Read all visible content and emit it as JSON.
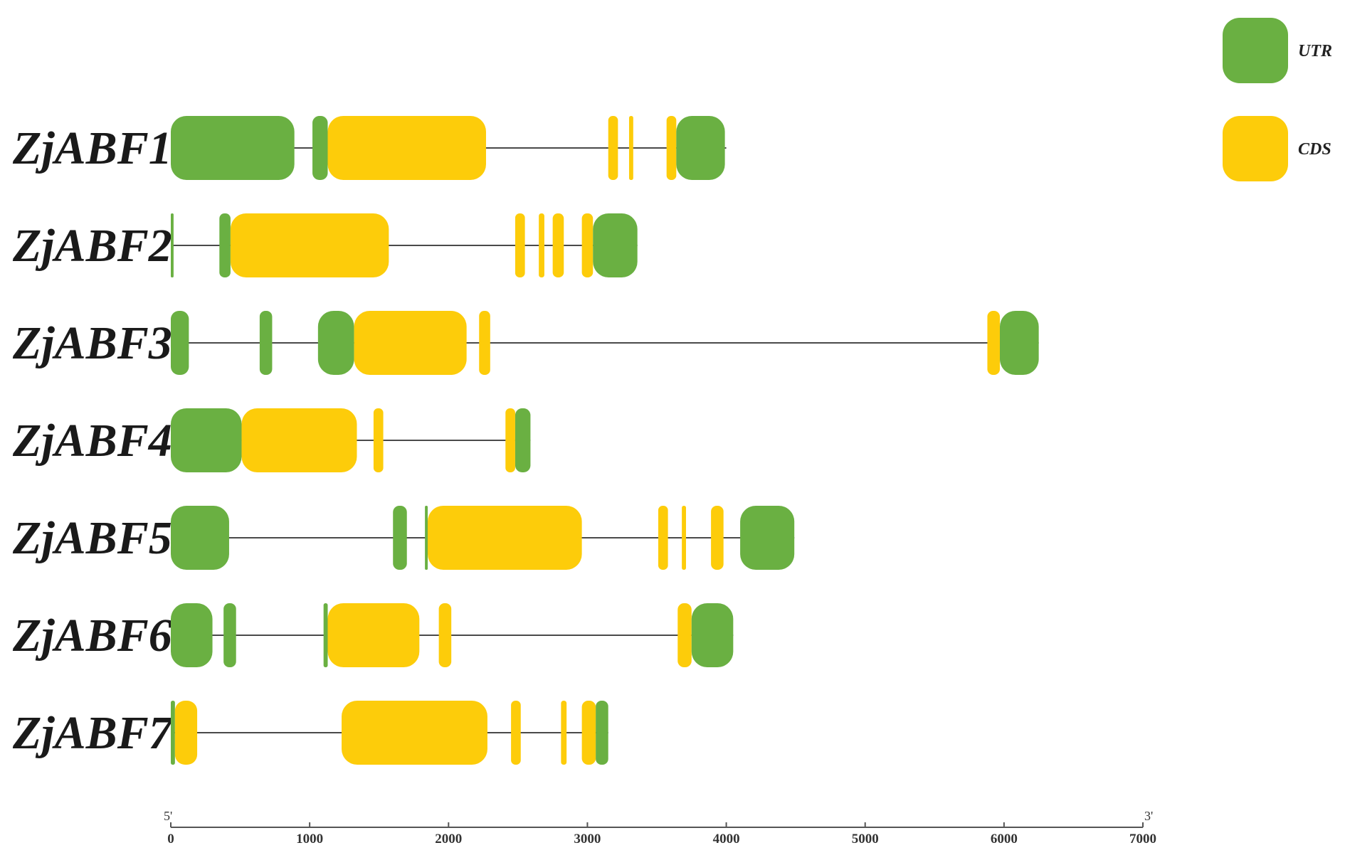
{
  "legend": [
    {
      "label": "UTR",
      "color": "#6ab042"
    },
    {
      "label": "CDS",
      "color": "#fdcc0a"
    }
  ],
  "axis": {
    "min": 0,
    "max": 7000,
    "ticks": [
      {
        "value": 0,
        "label": "0"
      },
      {
        "value": 1000,
        "label": "1000"
      },
      {
        "value": 2000,
        "label": "2000"
      },
      {
        "value": 3000,
        "label": "3000"
      },
      {
        "value": 4000,
        "label": "4000"
      },
      {
        "value": 5000,
        "label": "5000"
      },
      {
        "value": 6000,
        "label": "6000"
      },
      {
        "value": 7000,
        "label": "7000"
      }
    ],
    "start_label": "5'",
    "end_label": "3'"
  },
  "genes": [
    {
      "name": "ZjABF1",
      "length": 4000,
      "segments": [
        {
          "type": "UTR",
          "start": 0,
          "end": 890
        },
        {
          "type": "UTR",
          "start": 1020,
          "end": 1130
        },
        {
          "type": "CDS",
          "start": 1130,
          "end": 2270
        },
        {
          "type": "CDS",
          "start": 3150,
          "end": 3220
        },
        {
          "type": "CDS",
          "start": 3300,
          "end": 3330
        },
        {
          "type": "CDS",
          "start": 3570,
          "end": 3640
        },
        {
          "type": "UTR",
          "start": 3640,
          "end": 3990
        }
      ]
    },
    {
      "name": "ZjABF2",
      "length": 3360,
      "segments": [
        {
          "type": "UTR",
          "start": 0,
          "end": 20
        },
        {
          "type": "UTR",
          "start": 350,
          "end": 430
        },
        {
          "type": "CDS",
          "start": 430,
          "end": 1570
        },
        {
          "type": "CDS",
          "start": 2480,
          "end": 2550
        },
        {
          "type": "CDS",
          "start": 2650,
          "end": 2690
        },
        {
          "type": "CDS",
          "start": 2750,
          "end": 2830
        },
        {
          "type": "CDS",
          "start": 2960,
          "end": 3040
        },
        {
          "type": "UTR",
          "start": 3040,
          "end": 3360
        }
      ]
    },
    {
      "name": "ZjABF3",
      "length": 6250,
      "segments": [
        {
          "type": "UTR",
          "start": 0,
          "end": 130
        },
        {
          "type": "UTR",
          "start": 640,
          "end": 730
        },
        {
          "type": "UTR",
          "start": 1060,
          "end": 1320
        },
        {
          "type": "CDS",
          "start": 1320,
          "end": 2130
        },
        {
          "type": "CDS",
          "start": 2220,
          "end": 2300
        },
        {
          "type": "CDS",
          "start": 5880,
          "end": 5970
        },
        {
          "type": "UTR",
          "start": 5970,
          "end": 6250
        }
      ]
    },
    {
      "name": "ZjABF4",
      "length": 2590,
      "segments": [
        {
          "type": "UTR",
          "start": 0,
          "end": 510
        },
        {
          "type": "CDS",
          "start": 510,
          "end": 1340
        },
        {
          "type": "CDS",
          "start": 1460,
          "end": 1530
        },
        {
          "type": "CDS",
          "start": 2410,
          "end": 2480
        },
        {
          "type": "UTR",
          "start": 2480,
          "end": 2590
        }
      ]
    },
    {
      "name": "ZjABF5",
      "length": 4490,
      "segments": [
        {
          "type": "UTR",
          "start": 0,
          "end": 420
        },
        {
          "type": "UTR",
          "start": 1600,
          "end": 1700
        },
        {
          "type": "UTR",
          "start": 1830,
          "end": 1850
        },
        {
          "type": "CDS",
          "start": 1850,
          "end": 2960
        },
        {
          "type": "CDS",
          "start": 3510,
          "end": 3580
        },
        {
          "type": "CDS",
          "start": 3680,
          "end": 3710
        },
        {
          "type": "CDS",
          "start": 3890,
          "end": 3980
        },
        {
          "type": "UTR",
          "start": 4100,
          "end": 4490
        }
      ]
    },
    {
      "name": "ZjABF6",
      "length": 4050,
      "segments": [
        {
          "type": "UTR",
          "start": 0,
          "end": 300
        },
        {
          "type": "UTR",
          "start": 380,
          "end": 470
        },
        {
          "type": "UTR",
          "start": 1100,
          "end": 1130
        },
        {
          "type": "CDS",
          "start": 1130,
          "end": 1790
        },
        {
          "type": "CDS",
          "start": 1930,
          "end": 2020
        },
        {
          "type": "CDS",
          "start": 3650,
          "end": 3750
        },
        {
          "type": "UTR",
          "start": 3750,
          "end": 4050
        }
      ]
    },
    {
      "name": "ZjABF7",
      "length": 3150,
      "segments": [
        {
          "type": "UTR",
          "start": 0,
          "end": 30
        },
        {
          "type": "CDS",
          "start": 30,
          "end": 190
        },
        {
          "type": "CDS",
          "start": 1230,
          "end": 2280
        },
        {
          "type": "CDS",
          "start": 2450,
          "end": 2520
        },
        {
          "type": "CDS",
          "start": 2810,
          "end": 2850
        },
        {
          "type": "CDS",
          "start": 2960,
          "end": 3060
        },
        {
          "type": "UTR",
          "start": 3060,
          "end": 3150
        }
      ]
    }
  ]
}
